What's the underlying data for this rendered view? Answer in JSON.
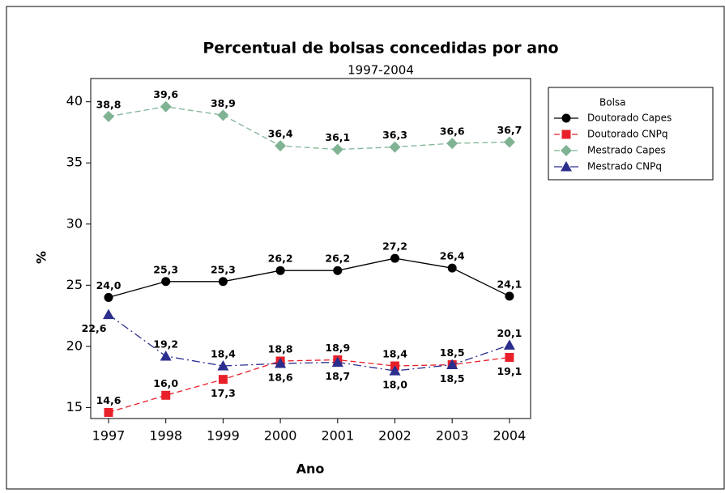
{
  "chart_data": {
    "type": "line",
    "title": "Percentual de bolsas concedidas por ano",
    "subtitle": "1997-2004",
    "x_label": "Ano",
    "y_label": "%",
    "legend_title": "Bolsa",
    "legend_position": "right",
    "categories": [
      "1997",
      "1998",
      "1999",
      "2000",
      "2001",
      "2002",
      "2003",
      "2004"
    ],
    "ylim": [
      14.1,
      41.9
    ],
    "yticks": [
      15,
      20,
      25,
      30,
      35,
      40
    ],
    "series": [
      {
        "name": "Doutorado Capes",
        "color": "#000000",
        "marker": "circle",
        "dash": "solid",
        "values": [
          24.0,
          25.3,
          25.3,
          26.2,
          26.2,
          27.2,
          26.4,
          24.1
        ],
        "value_labels": [
          "24,0",
          "25,3",
          "25,3",
          "26,2",
          "26,2",
          "27,2",
          "26,4",
          "24,1"
        ]
      },
      {
        "name": "Doutorado CNPq",
        "color": "#e8202a",
        "marker": "square",
        "dash": "dashed",
        "values": [
          14.6,
          16.0,
          17.3,
          18.8,
          18.9,
          18.4,
          18.5,
          19.1
        ],
        "value_labels": [
          "14,6",
          "16,0",
          "17,3",
          "18,8",
          "18,9",
          "18,4",
          "18,5",
          "19,1"
        ]
      },
      {
        "name": "Mestrado Capes",
        "color": "#7fb394",
        "marker": "diamond",
        "dash": "dashed",
        "values": [
          38.8,
          39.6,
          38.9,
          36.4,
          36.1,
          36.3,
          36.6,
          36.7
        ],
        "value_labels": [
          "38,8",
          "39,6",
          "38,9",
          "36,4",
          "36,1",
          "36,3",
          "36,6",
          "36,7"
        ]
      },
      {
        "name": "Mestrado CNPq",
        "color": "#2b2e8c",
        "marker": "triangle",
        "dash": "dashdot",
        "values": [
          22.6,
          19.2,
          18.4,
          18.6,
          18.7,
          18.0,
          18.5,
          20.1
        ],
        "value_labels": [
          "22,6",
          "19,2",
          "18,4",
          "18,6",
          "18,7",
          "18,0",
          "18,5",
          "20,1"
        ]
      }
    ]
  }
}
